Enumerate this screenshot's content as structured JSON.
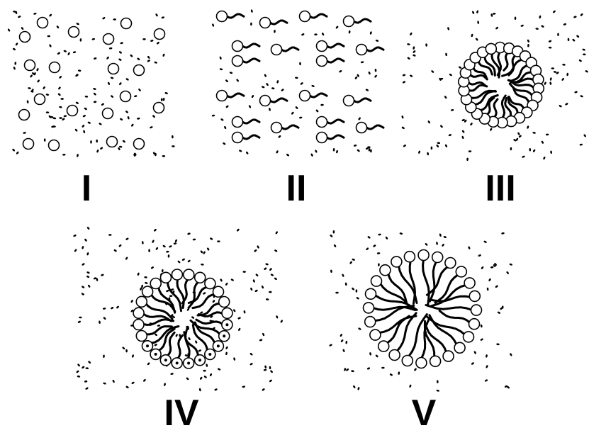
{
  "panels": [
    {
      "id": "I",
      "label": "I",
      "state": "free-molecules"
    },
    {
      "id": "II",
      "label": "II",
      "state": "free-surfactant-monomers"
    },
    {
      "id": "III",
      "label": "III",
      "state": "micelle-small"
    },
    {
      "id": "IV",
      "label": "IV",
      "state": "micelle-with-bound-molecules"
    },
    {
      "id": "V",
      "label": "V",
      "state": "micelle-large"
    }
  ],
  "colors": {
    "ink": "#000000",
    "background": "#ffffff",
    "head_fill": "#ffffff"
  }
}
